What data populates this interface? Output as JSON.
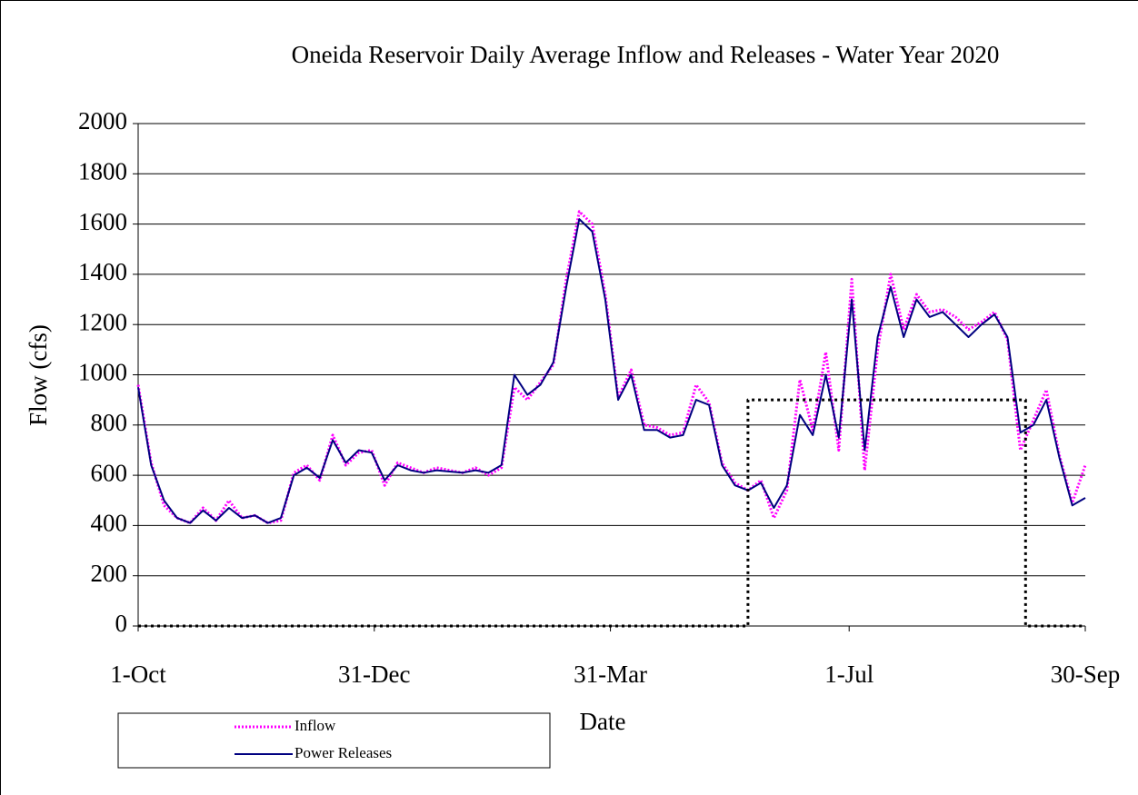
{
  "chart_data": {
    "type": "line",
    "title": "Oneida Reservoir Daily Average Inflow and Releases - Water Year 2020",
    "x_label": "Date",
    "y_label": "Flow (cfs)",
    "x": [
      0,
      5,
      10,
      15,
      20,
      25,
      30,
      35,
      40,
      45,
      50,
      55,
      60,
      65,
      70,
      75,
      80,
      85,
      90,
      95,
      100,
      105,
      110,
      115,
      120,
      125,
      130,
      135,
      140,
      145,
      150,
      155,
      160,
      165,
      170,
      175,
      180,
      185,
      190,
      195,
      200,
      205,
      210,
      215,
      220,
      225,
      230,
      235,
      240,
      245,
      250,
      255,
      260,
      265,
      270,
      275,
      280,
      285,
      290,
      295,
      300,
      305,
      310,
      315,
      320,
      325,
      330,
      335,
      340,
      345,
      350,
      355,
      360,
      365
    ],
    "xlim": [
      0,
      365
    ],
    "xticks": [
      {
        "value": 0,
        "label": "1-Oct"
      },
      {
        "value": 91,
        "label": "31-Dec"
      },
      {
        "value": 182,
        "label": "31-Mar"
      },
      {
        "value": 274,
        "label": "1-Jul"
      },
      {
        "value": 365,
        "label": "30-Sep"
      }
    ],
    "ylim": [
      0,
      2000
    ],
    "yticks": [
      0,
      200,
      400,
      600,
      800,
      1000,
      1200,
      1400,
      1600,
      1800,
      2000
    ],
    "grid": true,
    "legend": "bottom-left",
    "series": [
      {
        "name": "Inflow",
        "color": "#ff00ff",
        "values": [
          960,
          650,
          480,
          430,
          410,
          470,
          420,
          500,
          430,
          440,
          410,
          420,
          610,
          640,
          580,
          760,
          640,
          690,
          700,
          560,
          650,
          630,
          610,
          630,
          620,
          610,
          630,
          600,
          630,
          950,
          900,
          970,
          1040,
          1380,
          1650,
          1600,
          1320,
          910,
          1020,
          800,
          790,
          760,
          770,
          960,
          890,
          650,
          570,
          540,
          580,
          430,
          540,
          980,
          780,
          1090,
          700,
          1380,
          620,
          1100,
          1400,
          1180,
          1320,
          1250,
          1260,
          1230,
          1180,
          1210,
          1250,
          1140,
          700,
          820,
          940,
          680,
          490,
          640
        ]
      },
      {
        "name": "Power Releases",
        "color": "#000080",
        "values": [
          950,
          640,
          500,
          430,
          410,
          460,
          420,
          470,
          430,
          440,
          410,
          430,
          600,
          630,
          590,
          740,
          650,
          700,
          690,
          580,
          640,
          620,
          610,
          620,
          615,
          610,
          620,
          610,
          640,
          1000,
          920,
          960,
          1050,
          1350,
          1620,
          1570,
          1300,
          900,
          1000,
          780,
          780,
          750,
          760,
          900,
          880,
          640,
          560,
          540,
          570,
          470,
          560,
          840,
          760,
          1000,
          750,
          1300,
          700,
          1150,
          1350,
          1150,
          1300,
          1230,
          1250,
          1200,
          1150,
          1200,
          1240,
          1150,
          770,
          800,
          900,
          670,
          480,
          510
        ]
      },
      {
        "color": "#000000",
        "x": [
          0,
          235,
          235,
          342,
          342,
          365
        ],
        "values": [
          0,
          0,
          900,
          900,
          0,
          0
        ]
      }
    ]
  }
}
